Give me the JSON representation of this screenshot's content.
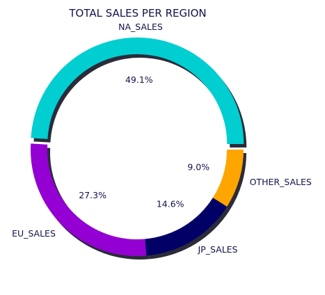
{
  "chart_data": {
    "type": "pie",
    "title": "TOTAL SALES PER REGION",
    "labels": [
      "NA_SALES",
      "EU_SALES",
      "JP_SALES",
      "OTHER_SALES"
    ],
    "values": [
      49.1,
      27.3,
      14.6,
      9.0
    ],
    "percent_labels": [
      "49.1%",
      "27.3%",
      "14.6%",
      "9.0%"
    ],
    "colors": [
      "#00ced1",
      "#9400d3",
      "#000066",
      "#ffa500"
    ],
    "shadow": true,
    "donut": true,
    "exploded": [
      "NA_SALES"
    ]
  }
}
